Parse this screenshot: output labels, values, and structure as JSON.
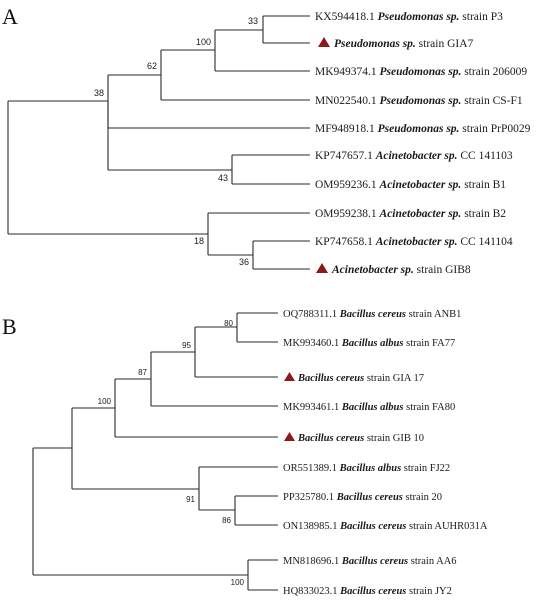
{
  "colors": {
    "marker": "#8B1A1A",
    "line": "#2a2a2a"
  },
  "panel_a": {
    "label": "A",
    "leaves": [
      {
        "acc": "KX594418.1",
        "genus": "Pseudomonas sp.",
        "rest": "strain P3",
        "marker": false
      },
      {
        "acc": "",
        "genus": "Pseudomonas sp.",
        "rest": "strain GIA7",
        "marker": true
      },
      {
        "acc": "MK949374.1",
        "genus": "Pseudomonas sp.",
        "rest": "strain 206009",
        "marker": false
      },
      {
        "acc": "MN022540.1",
        "genus": "Pseudomonas sp.",
        "rest": "strain CS-F1",
        "marker": false
      },
      {
        "acc": "MF948918.1",
        "genus": "Pseudomonas sp.",
        "rest": "strain PrP0029",
        "marker": false
      },
      {
        "acc": "KP747657.1",
        "genus": "Acinetobacter sp.",
        "rest": "CC 141103",
        "marker": false
      },
      {
        "acc": "OM959236.1",
        "genus": "Acinetobacter sp.",
        "rest": "strain B1",
        "marker": false
      },
      {
        "acc": "OM959238.1",
        "genus": "Acinetobacter sp.",
        "rest": "strain B2",
        "marker": false
      },
      {
        "acc": "KP747658.1",
        "genus": "Acinetobacter sp.",
        "rest": "CC 141104",
        "marker": false
      },
      {
        "acc": "",
        "genus": "Acinetobacter sp.",
        "rest": "strain GIB8",
        "marker": true
      }
    ],
    "bootstrap": [
      "33",
      "100",
      "62",
      "38",
      "43",
      "18",
      "36"
    ]
  },
  "panel_b": {
    "label": "B",
    "leaves": [
      {
        "acc": "OQ788311.1",
        "genus": "Bacillus cereus",
        "rest": "strain ANB1",
        "marker": false
      },
      {
        "acc": "MK993460.1",
        "genus": "Bacillus albus",
        "rest": "strain FA77",
        "marker": false
      },
      {
        "acc": "",
        "genus": "Bacillus cereus",
        "rest": "strain GIA 17",
        "marker": true
      },
      {
        "acc": "MK993461.1",
        "genus": "Bacillus albus",
        "rest": "strain FA80",
        "marker": false
      },
      {
        "acc": "",
        "genus": "Bacillus cereus",
        "rest": "strain GIB 10",
        "marker": true
      },
      {
        "acc": "OR551389.1",
        "genus": "Bacillus albus",
        "rest": "strain FJ22",
        "marker": false
      },
      {
        "acc": "PP325780.1",
        "genus": "Bacillus cereus",
        "rest": "strain 20",
        "marker": false
      },
      {
        "acc": "ON138985.1",
        "genus": "Bacillus cereus",
        "rest": "strain AUHR031A",
        "marker": false
      },
      {
        "acc": "MN818696.1",
        "genus": "Bacillus cereus",
        "rest": "strain AA6",
        "marker": false
      },
      {
        "acc": "HQ833023.1",
        "genus": "Bacillus cereus",
        "rest": "strain JY2",
        "marker": false
      }
    ],
    "bootstrap": [
      "80",
      "95",
      "87",
      "100",
      "91",
      "86",
      "100"
    ]
  }
}
